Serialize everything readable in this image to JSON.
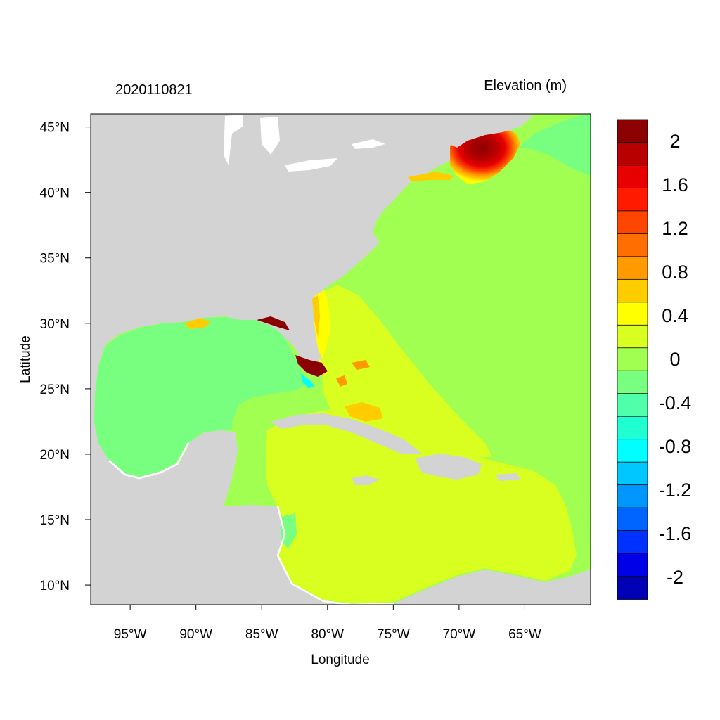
{
  "title_left": "2020110821",
  "title_right": "Elevation (m)",
  "x_axis": {
    "label": "Longitude",
    "range": [
      -98,
      -60
    ],
    "ticks": [
      {
        "value": -95,
        "label": "95°W"
      },
      {
        "value": -90,
        "label": "90°W"
      },
      {
        "value": -85,
        "label": "85°W"
      },
      {
        "value": -80,
        "label": "80°W"
      },
      {
        "value": -75,
        "label": "75°W"
      },
      {
        "value": -70,
        "label": "70°W"
      },
      {
        "value": -65,
        "label": "65°W"
      }
    ]
  },
  "y_axis": {
    "label": "Latitude",
    "range": [
      8.5,
      46
    ],
    "ticks": [
      {
        "value": 45,
        "label": "45°N"
      },
      {
        "value": 40,
        "label": "40°N"
      },
      {
        "value": 35,
        "label": "35°N"
      },
      {
        "value": 30,
        "label": "30°N"
      },
      {
        "value": 25,
        "label": "25°N"
      },
      {
        "value": 20,
        "label": "20°N"
      },
      {
        "value": 15,
        "label": "15°N"
      },
      {
        "value": 10,
        "label": "10°N"
      }
    ]
  },
  "colorbar": {
    "colors": [
      "#8b0000",
      "#b80000",
      "#e60000",
      "#ff1a00",
      "#ff4500",
      "#ff6e00",
      "#ff9a00",
      "#ffcc00",
      "#ffff00",
      "#d8ff20",
      "#a0ff50",
      "#78ff80",
      "#50ffaa",
      "#20ffd2",
      "#00ffff",
      "#00c8ff",
      "#0096ff",
      "#0064ff",
      "#0032ff",
      "#0000e6",
      "#0000b4"
    ],
    "labels": [
      {
        "value": 2,
        "label": "2"
      },
      {
        "value": 1.6,
        "label": "1.6"
      },
      {
        "value": 1.2,
        "label": "1.2"
      },
      {
        "value": 0.8,
        "label": "0.8"
      },
      {
        "value": 0.4,
        "label": "0.4"
      },
      {
        "value": 0,
        "label": "0"
      },
      {
        "value": -0.4,
        "label": "-0.4"
      },
      {
        "value": -0.8,
        "label": "-0.8"
      },
      {
        "value": -1.2,
        "label": "-1.2"
      },
      {
        "value": -1.6,
        "label": "-1.6"
      },
      {
        "value": -2,
        "label": "-2"
      }
    ]
  },
  "colors": {
    "land": "#d3d3d3",
    "gulf": "#78ff80",
    "atlantic": "#a0ff50",
    "caribbean": "#d8ff20",
    "surge_high": "#8b0000",
    "surge_mid": "#ff4500",
    "surge_low": "#ffcc00",
    "negative": "#00ffff"
  }
}
